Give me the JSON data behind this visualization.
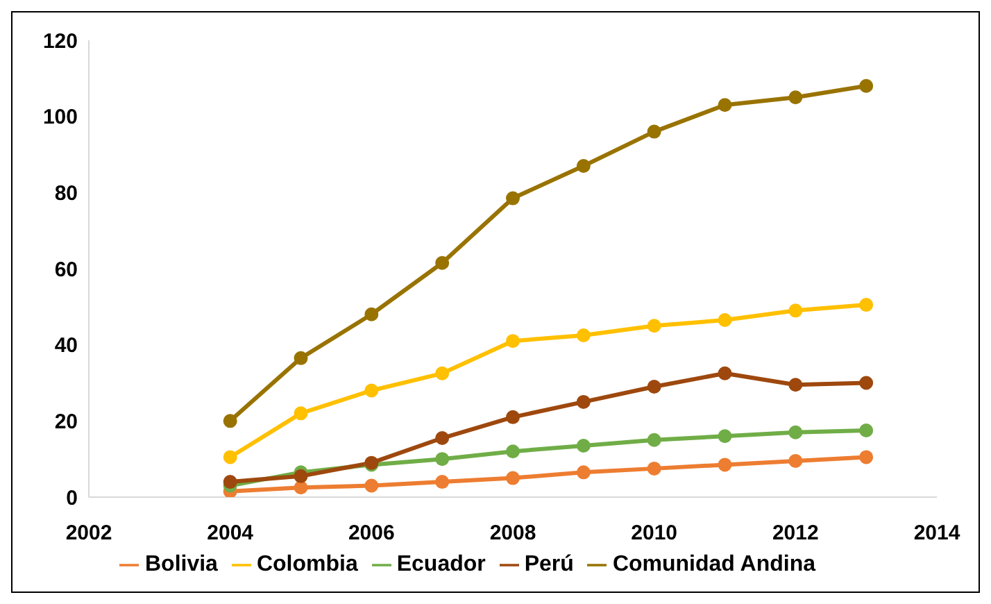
{
  "chart_data": {
    "type": "line",
    "x": [
      2004,
      2005,
      2006,
      2007,
      2008,
      2009,
      2010,
      2011,
      2012,
      2013
    ],
    "series": [
      {
        "name": "Bolivia",
        "color": "#ed7d31",
        "values": [
          1.5,
          2.5,
          3,
          4,
          5,
          6.5,
          7.5,
          8.5,
          9.5,
          10.5
        ]
      },
      {
        "name": "Colombia",
        "color": "#ffc000",
        "values": [
          10.5,
          22,
          28,
          32.5,
          41,
          42.5,
          45,
          46.5,
          49,
          50.5
        ]
      },
      {
        "name": "Ecuador",
        "color": "#70ad47",
        "values": [
          3,
          6.5,
          8.5,
          10,
          12,
          13.5,
          15,
          16,
          17,
          17.5
        ]
      },
      {
        "name": "Perú",
        "color": "#9e480e",
        "values": [
          4,
          5.5,
          9,
          15.5,
          21,
          25,
          29,
          32.5,
          29.5,
          30
        ]
      },
      {
        "name": "Comunidad Andina",
        "color": "#997300",
        "values": [
          20,
          36.5,
          48,
          61.5,
          78.5,
          87,
          96,
          103,
          105,
          108
        ]
      }
    ],
    "xlim": [
      2002,
      2014
    ],
    "xticks": [
      2002,
      2004,
      2006,
      2008,
      2010,
      2012,
      2014
    ],
    "ylim": [
      0,
      120
    ],
    "yticks": [
      0,
      20,
      40,
      60,
      80,
      100,
      120
    ],
    "grid": false,
    "legend": "bottom",
    "marker": "circle",
    "line_style": "solid"
  }
}
